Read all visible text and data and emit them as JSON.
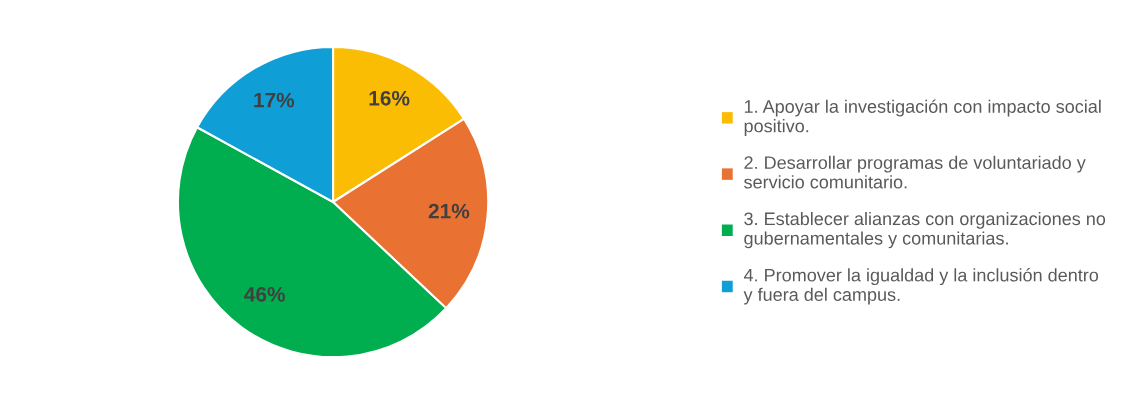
{
  "chart_data": {
    "type": "pie",
    "categories": [
      "1. Apoyar la investigación con impacto social positivo.",
      "2. Desarrollar programas de voluntariado y servicio comunitario.",
      "3. Establecer alianzas con organizaciones no gubernamentales y comunitarias.",
      "4. Promover la igualdad y la inclusión dentro y fuera del campus."
    ],
    "values": [
      16,
      21,
      46,
      17
    ],
    "colors": [
      "#fbbc04",
      "#e97132",
      "#00ad4f",
      "#0f9ed5"
    ],
    "value_labels": [
      "16%",
      "21%",
      "46%",
      "17%"
    ],
    "legend": "right"
  }
}
